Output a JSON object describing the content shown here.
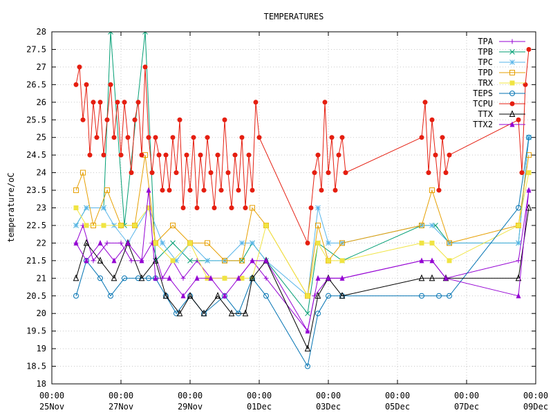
{
  "chart_data": {
    "type": "line",
    "title": "TEMPERATURES",
    "xlabel": "",
    "ylabel": "temperature/oC",
    "ylim": [
      18,
      28
    ],
    "xlim": [
      "2023-11-25 00:00",
      "2023-12-09 00:00"
    ],
    "grid": true,
    "legend_position": "top-right",
    "y_ticks": [
      "18",
      "18.5",
      "19",
      "19.5",
      "20",
      "20.5",
      "21",
      "21.5",
      "22",
      "22.5",
      "23",
      "23.5",
      "24",
      "24.5",
      "25",
      "25.5",
      "26",
      "26.5",
      "27",
      "27.5",
      "28"
    ],
    "x_ticks": [
      {
        "time": "00:00",
        "date": "25Nov",
        "day": 0
      },
      {
        "time": "00:00",
        "date": "27Nov",
        "day": 2
      },
      {
        "time": "00:00",
        "date": "29Nov",
        "day": 4
      },
      {
        "time": "00:00",
        "date": "01Dec",
        "day": 6
      },
      {
        "time": "00:00",
        "date": "03Dec",
        "day": 8
      },
      {
        "time": "00:00",
        "date": "05Dec",
        "day": 10
      },
      {
        "time": "00:00",
        "date": "07Dec",
        "day": 12
      },
      {
        "time": "00:00",
        "date": "09Dec",
        "day": 14
      }
    ],
    "series": [
      {
        "name": "TPA",
        "color": "#9400d3",
        "marker": "plus",
        "points": [
          [
            0.7,
            22.0
          ],
          [
            0.9,
            22.5
          ],
          [
            1.2,
            21.5
          ],
          [
            1.6,
            22.0
          ],
          [
            2.0,
            22.0
          ],
          [
            2.3,
            21.5
          ],
          [
            2.6,
            21.5
          ],
          [
            2.9,
            22.0
          ],
          [
            3.2,
            21.0
          ],
          [
            3.5,
            21.5
          ],
          [
            3.8,
            21.0
          ],
          [
            4.2,
            21.5
          ],
          [
            4.6,
            21.0
          ],
          [
            5.0,
            21.0
          ],
          [
            5.4,
            21.0
          ],
          [
            5.8,
            21.5
          ],
          [
            6.2,
            21.0
          ],
          [
            7.4,
            19.5
          ],
          [
            7.6,
            20.5
          ],
          [
            8.0,
            21.0
          ],
          [
            8.4,
            21.0
          ],
          [
            10.7,
            21.5
          ],
          [
            11.0,
            21.5
          ],
          [
            11.4,
            21.0
          ],
          [
            13.5,
            21.5
          ],
          [
            13.8,
            23.5
          ]
        ]
      },
      {
        "name": "TPB",
        "color": "#009e73",
        "marker": "cross",
        "points": [
          [
            0.7,
            22.5
          ],
          [
            1.0,
            23.0
          ],
          [
            1.5,
            23.0
          ],
          [
            1.7,
            28.0
          ],
          [
            2.1,
            22.5
          ],
          [
            2.7,
            28.0
          ],
          [
            3.0,
            21.5
          ],
          [
            3.5,
            22.0
          ],
          [
            4.0,
            21.5
          ],
          [
            4.5,
            21.5
          ],
          [
            5.0,
            21.5
          ],
          [
            5.5,
            21.5
          ],
          [
            5.8,
            22.0
          ],
          [
            6.2,
            21.5
          ],
          [
            7.4,
            20.0
          ],
          [
            7.7,
            22.0
          ],
          [
            8.4,
            21.5
          ],
          [
            10.7,
            22.5
          ],
          [
            11.1,
            22.5
          ],
          [
            11.5,
            22.0
          ],
          [
            13.5,
            22.0
          ],
          [
            13.8,
            25.0
          ]
        ]
      },
      {
        "name": "TPC",
        "color": "#56b4e9",
        "marker": "star",
        "points": [
          [
            0.7,
            22.5
          ],
          [
            1.0,
            23.0
          ],
          [
            1.5,
            23.0
          ],
          [
            1.8,
            22.5
          ],
          [
            2.2,
            22.0
          ],
          [
            2.8,
            23.0
          ],
          [
            3.2,
            22.0
          ],
          [
            3.6,
            21.5
          ],
          [
            4.0,
            22.0
          ],
          [
            4.5,
            21.5
          ],
          [
            5.0,
            21.5
          ],
          [
            5.5,
            22.0
          ],
          [
            5.8,
            22.0
          ],
          [
            6.2,
            21.5
          ],
          [
            7.4,
            20.5
          ],
          [
            7.7,
            23.0
          ],
          [
            8.0,
            22.0
          ],
          [
            8.4,
            22.0
          ],
          [
            10.7,
            22.5
          ],
          [
            11.0,
            22.5
          ],
          [
            11.5,
            22.0
          ],
          [
            13.5,
            22.0
          ],
          [
            13.8,
            25.0
          ]
        ]
      },
      {
        "name": "TPD",
        "color": "#e69f00",
        "marker": "square",
        "points": [
          [
            0.7,
            23.5
          ],
          [
            0.9,
            24.0
          ],
          [
            1.2,
            22.5
          ],
          [
            1.6,
            23.5
          ],
          [
            2.0,
            22.5
          ],
          [
            2.4,
            22.5
          ],
          [
            2.7,
            24.5
          ],
          [
            3.0,
            22.0
          ],
          [
            3.5,
            22.5
          ],
          [
            4.0,
            22.0
          ],
          [
            4.5,
            22.0
          ],
          [
            5.0,
            21.5
          ],
          [
            5.5,
            21.5
          ],
          [
            5.8,
            23.0
          ],
          [
            6.2,
            22.5
          ],
          [
            7.4,
            20.5
          ],
          [
            7.7,
            22.5
          ],
          [
            8.0,
            21.5
          ],
          [
            8.4,
            22.0
          ],
          [
            10.7,
            22.5
          ],
          [
            11.0,
            23.5
          ],
          [
            11.5,
            22.0
          ],
          [
            13.5,
            22.5
          ],
          [
            13.8,
            24.5
          ]
        ]
      },
      {
        "name": "TRX",
        "color": "#f0e442",
        "marker": "filled-square",
        "points": [
          [
            0.7,
            23.0
          ],
          [
            1.0,
            22.5
          ],
          [
            1.5,
            22.5
          ],
          [
            2.0,
            22.5
          ],
          [
            2.4,
            22.5
          ],
          [
            2.8,
            23.0
          ],
          [
            3.0,
            22.0
          ],
          [
            3.5,
            21.5
          ],
          [
            4.0,
            22.0
          ],
          [
            4.5,
            21.0
          ],
          [
            5.0,
            21.0
          ],
          [
            5.5,
            21.0
          ],
          [
            5.8,
            21.0
          ],
          [
            6.2,
            22.5
          ],
          [
            7.4,
            20.5
          ],
          [
            7.7,
            22.0
          ],
          [
            8.0,
            21.5
          ],
          [
            8.4,
            21.5
          ],
          [
            10.7,
            22.0
          ],
          [
            11.0,
            22.0
          ],
          [
            11.5,
            21.5
          ],
          [
            13.5,
            22.5
          ],
          [
            13.8,
            24.0
          ]
        ]
      },
      {
        "name": "TEPS",
        "color": "#0072b2",
        "marker": "circle",
        "points": [
          [
            0.7,
            20.5
          ],
          [
            1.0,
            21.5
          ],
          [
            1.4,
            21.0
          ],
          [
            1.7,
            20.5
          ],
          [
            2.1,
            21.0
          ],
          [
            2.5,
            21.0
          ],
          [
            2.8,
            21.0
          ],
          [
            3.0,
            21.0
          ],
          [
            3.3,
            20.5
          ],
          [
            3.6,
            20.0
          ],
          [
            4.0,
            20.5
          ],
          [
            4.4,
            20.0
          ],
          [
            5.0,
            20.5
          ],
          [
            5.4,
            20.0
          ],
          [
            5.8,
            21.0
          ],
          [
            6.2,
            20.5
          ],
          [
            7.4,
            18.5
          ],
          [
            7.7,
            20.0
          ],
          [
            8.0,
            20.5
          ],
          [
            8.4,
            20.5
          ],
          [
            10.7,
            20.5
          ],
          [
            11.2,
            20.5
          ],
          [
            11.5,
            20.5
          ],
          [
            13.5,
            23.0
          ],
          [
            13.8,
            25.0
          ]
        ]
      },
      {
        "name": "TCPU",
        "color": "#e51e10",
        "marker": "filled-circle",
        "points": [
          [
            0.7,
            26.5
          ],
          [
            0.8,
            27.0
          ],
          [
            0.9,
            25.5
          ],
          [
            1.0,
            26.5
          ],
          [
            1.1,
            24.5
          ],
          [
            1.2,
            26.0
          ],
          [
            1.3,
            25.0
          ],
          [
            1.4,
            26.0
          ],
          [
            1.5,
            24.5
          ],
          [
            1.6,
            25.5
          ],
          [
            1.7,
            26.5
          ],
          [
            1.8,
            25.0
          ],
          [
            1.9,
            26.0
          ],
          [
            2.0,
            24.5
          ],
          [
            2.1,
            26.0
          ],
          [
            2.2,
            25.0
          ],
          [
            2.3,
            24.0
          ],
          [
            2.4,
            25.5
          ],
          [
            2.5,
            26.0
          ],
          [
            2.6,
            24.5
          ],
          [
            2.7,
            27.0
          ],
          [
            2.8,
            25.0
          ],
          [
            2.9,
            24.0
          ],
          [
            3.0,
            25.0
          ],
          [
            3.1,
            24.5
          ],
          [
            3.2,
            23.5
          ],
          [
            3.3,
            24.5
          ],
          [
            3.4,
            23.5
          ],
          [
            3.5,
            25.0
          ],
          [
            3.6,
            24.0
          ],
          [
            3.7,
            25.5
          ],
          [
            3.8,
            23.0
          ],
          [
            3.9,
            24.5
          ],
          [
            4.0,
            23.5
          ],
          [
            4.1,
            25.0
          ],
          [
            4.2,
            23.0
          ],
          [
            4.3,
            24.5
          ],
          [
            4.4,
            23.5
          ],
          [
            4.5,
            25.0
          ],
          [
            4.6,
            24.0
          ],
          [
            4.7,
            23.0
          ],
          [
            4.8,
            24.5
          ],
          [
            4.9,
            23.5
          ],
          [
            5.0,
            25.5
          ],
          [
            5.1,
            24.0
          ],
          [
            5.2,
            23.0
          ],
          [
            5.3,
            24.5
          ],
          [
            5.4,
            23.5
          ],
          [
            5.5,
            25.0
          ],
          [
            5.6,
            23.0
          ],
          [
            5.7,
            24.5
          ],
          [
            5.8,
            23.5
          ],
          [
            5.9,
            26.0
          ],
          [
            6.0,
            25.0
          ],
          [
            7.4,
            22.0
          ],
          [
            7.5,
            23.0
          ],
          [
            7.6,
            24.0
          ],
          [
            7.7,
            24.5
          ],
          [
            7.8,
            23.5
          ],
          [
            7.9,
            26.0
          ],
          [
            8.0,
            24.0
          ],
          [
            8.1,
            25.0
          ],
          [
            8.2,
            23.5
          ],
          [
            8.3,
            24.5
          ],
          [
            8.4,
            25.0
          ],
          [
            8.5,
            24.0
          ],
          [
            10.7,
            25.0
          ],
          [
            10.8,
            26.0
          ],
          [
            10.9,
            24.0
          ],
          [
            11.0,
            25.5
          ],
          [
            11.1,
            24.5
          ],
          [
            11.2,
            23.5
          ],
          [
            11.3,
            25.0
          ],
          [
            11.4,
            24.0
          ],
          [
            11.5,
            24.5
          ],
          [
            13.5,
            25.5
          ],
          [
            13.6,
            24.0
          ],
          [
            13.7,
            26.5
          ],
          [
            13.8,
            27.5
          ]
        ]
      },
      {
        "name": "TTX",
        "color": "#000000",
        "marker": "triangle",
        "points": [
          [
            0.7,
            21.0
          ],
          [
            1.0,
            22.0
          ],
          [
            1.4,
            21.5
          ],
          [
            1.8,
            21.0
          ],
          [
            2.2,
            22.0
          ],
          [
            2.6,
            21.0
          ],
          [
            3.0,
            21.5
          ],
          [
            3.3,
            20.5
          ],
          [
            3.7,
            20.0
          ],
          [
            4.0,
            20.5
          ],
          [
            4.4,
            20.0
          ],
          [
            4.8,
            20.5
          ],
          [
            5.2,
            20.0
          ],
          [
            5.6,
            20.0
          ],
          [
            5.8,
            21.0
          ],
          [
            6.2,
            21.5
          ],
          [
            7.4,
            19.0
          ],
          [
            7.7,
            20.5
          ],
          [
            8.0,
            21.0
          ],
          [
            8.4,
            20.5
          ],
          [
            10.7,
            21.0
          ],
          [
            11.0,
            21.0
          ],
          [
            11.4,
            21.0
          ],
          [
            13.5,
            21.0
          ],
          [
            13.8,
            23.0
          ]
        ]
      },
      {
        "name": "TTX2",
        "color": "#9400d3",
        "marker": "filled-triangle",
        "points": [
          [
            0.7,
            22.0
          ],
          [
            1.0,
            21.5
          ],
          [
            1.4,
            22.0
          ],
          [
            1.8,
            21.5
          ],
          [
            2.2,
            22.0
          ],
          [
            2.6,
            21.5
          ],
          [
            2.8,
            23.5
          ],
          [
            3.0,
            21.0
          ],
          [
            3.4,
            21.0
          ],
          [
            3.8,
            20.5
          ],
          [
            4.2,
            21.0
          ],
          [
            4.6,
            21.0
          ],
          [
            5.0,
            20.5
          ],
          [
            5.4,
            21.0
          ],
          [
            5.8,
            21.5
          ],
          [
            6.2,
            21.5
          ],
          [
            7.4,
            19.5
          ],
          [
            7.7,
            21.0
          ],
          [
            8.0,
            21.0
          ],
          [
            8.4,
            21.0
          ],
          [
            10.7,
            21.5
          ],
          [
            11.0,
            21.5
          ],
          [
            11.4,
            21.0
          ],
          [
            13.5,
            20.5
          ],
          [
            13.8,
            23.5
          ]
        ]
      }
    ]
  }
}
